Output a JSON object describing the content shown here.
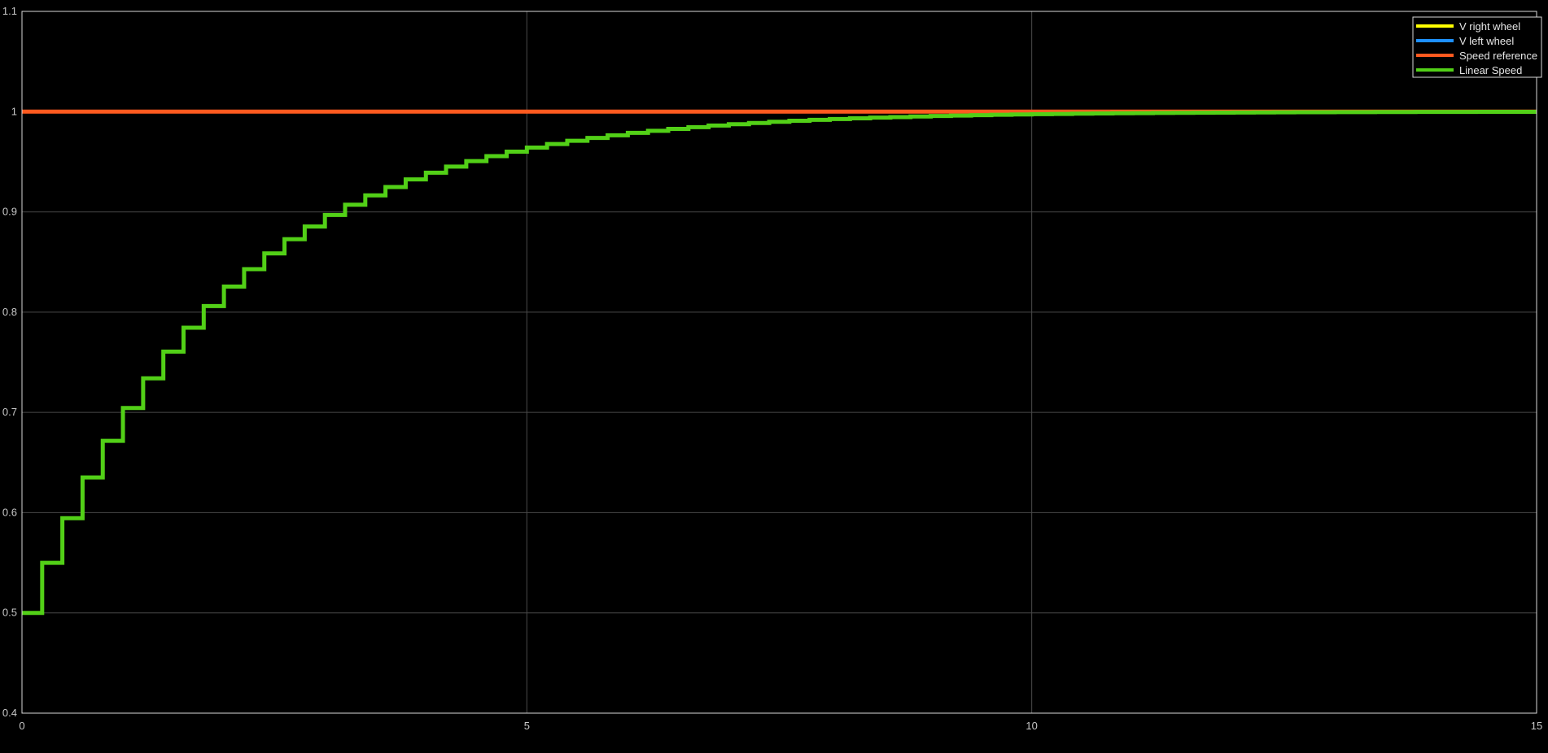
{
  "chart_data": {
    "type": "line",
    "title": "",
    "xlabel": "",
    "ylabel": "",
    "xlim": [
      0,
      15
    ],
    "ylim": [
      0.4,
      1.1
    ],
    "x_ticks": [
      0,
      5,
      10,
      15
    ],
    "x_tick_labels": [
      "0",
      "5",
      "10",
      "15"
    ],
    "y_ticks": [
      0.4,
      0.5,
      0.6,
      0.7,
      0.8,
      0.9,
      1.0,
      1.1
    ],
    "y_tick_labels": [
      "0.4",
      "0.5",
      "0.6",
      "0.7",
      "0.8",
      "0.9",
      "1",
      "1.1"
    ],
    "grid": true,
    "legend_position": "top-right",
    "colors": {
      "background": "#000000",
      "axes_box": "#d9d9d9",
      "grid": "#4a4a4a",
      "tick_label": "#c8c8c8"
    },
    "series": [
      {
        "name": "V right wheel",
        "color": "#ffff00",
        "style": "step",
        "x": [
          0,
          15
        ],
        "y": [
          1,
          1
        ]
      },
      {
        "name": "V left wheel",
        "color": "#1e90ff",
        "style": "step",
        "x": [
          0,
          15
        ],
        "y": [
          1,
          1
        ]
      },
      {
        "name": "Speed reference",
        "color": "#ff5a1f",
        "style": "step",
        "x": [
          0,
          15
        ],
        "y": [
          1,
          1
        ]
      },
      {
        "name": "Linear Speed",
        "color": "#52d017",
        "style": "step",
        "x": [
          0,
          0.2,
          0.4,
          0.6,
          0.8,
          1.0,
          1.2,
          1.4,
          1.6,
          1.8,
          2.0,
          2.2,
          2.4,
          2.6,
          2.8,
          3.0,
          3.2,
          3.4,
          3.6,
          3.8,
          4.0,
          4.2,
          4.4,
          4.6,
          4.8,
          5.0,
          5.2,
          5.4,
          5.6,
          5.8,
          6.0,
          6.2,
          6.4,
          6.6,
          6.8,
          7.0,
          7.2,
          7.4,
          7.6,
          7.8,
          8.0,
          8.2,
          8.4,
          8.6,
          8.8,
          9.0,
          9.2,
          9.4,
          9.6,
          9.8,
          10.0,
          10.2,
          10.4,
          10.6,
          10.8,
          11.0,
          11.2,
          11.4,
          11.6,
          11.8,
          12.0,
          12.2,
          12.4,
          12.6,
          12.8,
          13.0,
          13.2,
          13.4,
          13.6,
          13.8,
          14.0,
          14.2,
          14.4,
          14.6,
          14.8,
          15.0
        ],
        "y": [
          0.5,
          0.55,
          0.5945,
          0.6351,
          0.6716,
          0.7044,
          0.734,
          0.7606,
          0.7845,
          0.8061,
          0.8255,
          0.8429,
          0.8586,
          0.8728,
          0.8855,
          0.8969,
          0.9072,
          0.9165,
          0.9248,
          0.9324,
          0.9391,
          0.9452,
          0.9507,
          0.9556,
          0.9601,
          0.9641,
          0.9677,
          0.9709,
          0.9738,
          0.9764,
          0.9788,
          0.9809,
          0.9828,
          0.9845,
          0.9861,
          0.9875,
          0.9887,
          0.9899,
          0.9909,
          0.9918,
          0.9926,
          0.9933,
          0.994,
          0.9946,
          0.9952,
          0.9957,
          0.9961,
          0.9965,
          0.9969,
          0.9972,
          0.9975,
          0.9977,
          0.998,
          0.9982,
          0.9984,
          0.9985,
          0.9987,
          0.9988,
          0.9989,
          0.999,
          0.9991,
          0.9992,
          0.9993,
          0.9994,
          0.9994,
          0.9995,
          0.9995,
          0.9996,
          0.9996,
          0.9997,
          0.9997,
          0.9997,
          0.9998,
          0.9998,
          0.9998,
          0.9998
        ]
      }
    ]
  }
}
